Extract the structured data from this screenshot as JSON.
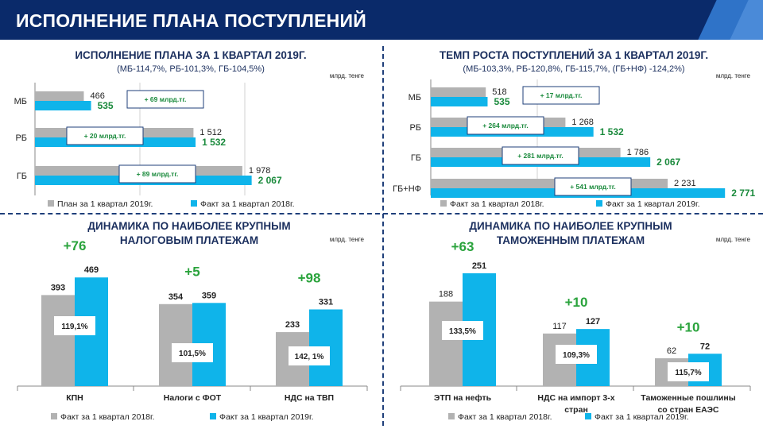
{
  "header": {
    "title": "ИСПОЛНЕНИЕ ПЛАНА ПОСТУПЛЕНИЙ"
  },
  "colors": {
    "gray": "#b2b2b2",
    "blue": "#0fb4ea",
    "green": "#2aa33c",
    "navy": "#0a2a6a"
  },
  "chart_data": [
    {
      "type": "bar",
      "title": "ИСПОЛНЕНИЕ ПЛАНА ЗА 1 КВАРТАЛ 2019Г.",
      "subtitle": "(МБ-114,7%, РБ-101,3%, ГБ-104,5%)",
      "unit": "млрд. тенге",
      "categories": [
        "МБ",
        "РБ",
        "ГБ"
      ],
      "value_labels": [
        [
          "466",
          "1 512",
          "1 978"
        ],
        [
          "535",
          "1 532",
          "2 067"
        ]
      ],
      "series": [
        {
          "name": "План за 1 квартал 2019г.",
          "values": [
            466,
            1512,
            1978
          ]
        },
        {
          "name": "Факт за 1 квартал 2018г.",
          "values": [
            535,
            1532,
            2067
          ]
        }
      ],
      "annotations": [
        "+ 69 млрд.тг.",
        "+ 20 млрд.тг.",
        "+ 89 млрд.тг."
      ],
      "legend_position": "bottom"
    },
    {
      "type": "bar",
      "title": "ТЕМП РОСТА ПОСТУПЛЕНИЙ ЗА 1 КВАРТАЛ 2019Г.",
      "subtitle": "(МБ-103,3%, РБ-120,8%, ГБ-115,7%, (ГБ+НФ) -124,2%)",
      "unit": "млрд. тенге",
      "categories": [
        "МБ",
        "РБ",
        "ГБ",
        "ГБ+НФ"
      ],
      "value_labels": [
        [
          "518",
          "1 268",
          "1 786",
          "2 231"
        ],
        [
          "535",
          "1 532",
          "2 067",
          "2 771"
        ]
      ],
      "series": [
        {
          "name": "Факт за 1 квартал 2018г.",
          "values": [
            518,
            1268,
            1786,
            2231
          ]
        },
        {
          "name": "Факт за 1 квартал 2019г.",
          "values": [
            535,
            1532,
            2067,
            2771
          ]
        }
      ],
      "annotations": [
        "+ 17 млрд.тг.",
        "+ 264 млрд.тг.",
        "+ 281 млрд.тг.",
        "+ 541 млрд.тг."
      ],
      "legend_position": "bottom"
    },
    {
      "type": "bar",
      "title": [
        "ДИНАМИКА ПО НАИБОЛЕЕ КРУПНЫМ",
        "НАЛОГОВЫМ ПЛАТЕЖАМ"
      ],
      "unit": "млрд. тенге",
      "categories": [
        "КПН",
        "Налоги с ФОТ",
        "НДС на ТВП"
      ],
      "series": [
        {
          "name": "Факт за 1 квартал 2018г.",
          "values": [
            393,
            354,
            233
          ]
        },
        {
          "name": "Факт за 1 квартал 2019г.",
          "values": [
            469,
            359,
            331
          ]
        }
      ],
      "diffs": [
        "+76",
        "+5",
        "+98"
      ],
      "percents": [
        "119,1%",
        "101,5%",
        "142, 1%"
      ],
      "legend_position": "bottom"
    },
    {
      "type": "bar",
      "title": [
        "ДИНАМИКА ПО НАИБОЛЕЕ КРУПНЫМ",
        "ТАМОЖЕННЫМ ПЛАТЕЖАМ"
      ],
      "unit": "млрд. тенге",
      "categories": [
        "ЭТП на нефть",
        "НДС на импорт  3-х стран",
        "Таможенные  пошлины со стран  ЕАЭС"
      ],
      "category_lines": [
        [
          "ЭТП на нефть"
        ],
        [
          "НДС на импорт  3-х",
          "стран"
        ],
        [
          "Таможенные  пошлины",
          "со стран  ЕАЭС"
        ]
      ],
      "series": [
        {
          "name": "Факт за 1 квартал 2018г.",
          "values": [
            188,
            117,
            62
          ]
        },
        {
          "name": "Факт за 1 квартал 2019г.",
          "values": [
            251,
            127,
            72
          ]
        }
      ],
      "diffs": [
        "+63",
        "+10",
        "+10"
      ],
      "percents": [
        "133,5%",
        "109,3%",
        "115,7%"
      ],
      "legend_position": "bottom"
    }
  ]
}
